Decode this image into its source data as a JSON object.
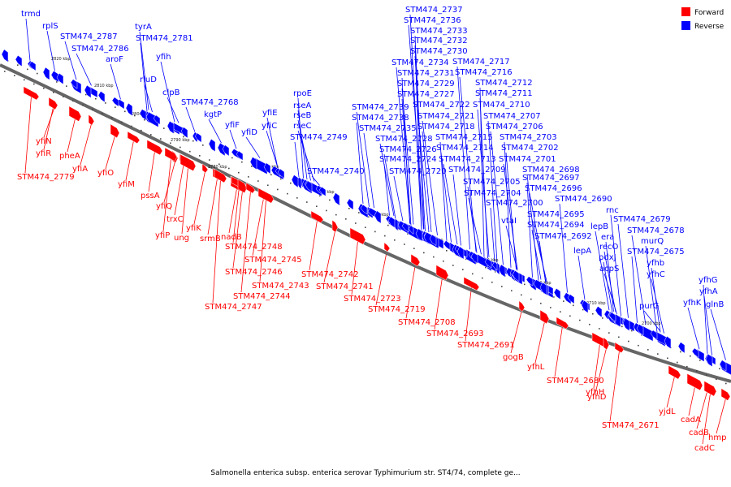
{
  "caption": "Salmonella enterica subsp. enterica serovar Typhimurium str. ST4/74, complete ge...",
  "legend": [
    {
      "label": "Forward",
      "color": "#ff0000"
    },
    {
      "label": "Reverse",
      "color": "#0000ff"
    }
  ],
  "colors": {
    "forward": "#ff0000",
    "reverse": "#0000ff",
    "backbone": "#666666"
  },
  "ticks": [
    "2820 kbp",
    "2810 kbp",
    "2800 kbp",
    "2790 kbp",
    "2780 kbp",
    "2770 kbp",
    "2760 kbp",
    "2750 kbp",
    "2740 kbp",
    "2730 kbp",
    "2720 kbp",
    "2710 kbp",
    "2700 kbp"
  ],
  "reverse_labels": [
    "trmd",
    "rplS",
    "STM474_2787",
    "STM474_2786",
    "tyrA",
    "STM474_2781",
    "aroF",
    "yfih",
    "rluD",
    "clpB",
    "STM474_2768",
    "kgtP",
    "yfiF",
    "yfiE",
    "yfiD",
    "yfiC",
    "rpoE",
    "rseA",
    "rseB",
    "rseC",
    "STM474_2749",
    "STM474_2740",
    "STM474_2737",
    "STM474_2736",
    "STM474_2733",
    "STM474_2732",
    "STM474_2730",
    "STM474_2734",
    "STM474_2731",
    "STM474_2729",
    "STM474_2727",
    "STM474_2739",
    "STM474_2738",
    "STM474_2735",
    "STM474_2728",
    "STM474_2726",
    "STM474_2724",
    "STM474_2720",
    "STM474_2717",
    "STM474_2716",
    "STM474_2712",
    "STM474_2711",
    "STM474_2722",
    "STM474_2721",
    "STM474_2718",
    "STM474_2715",
    "STM474_2714",
    "STM474_2713",
    "STM474_2709",
    "STM474_2710",
    "STM474_2707",
    "STM474_2706",
    "STM474_2703",
    "STM474_2702",
    "STM474_2701",
    "STM474_2698",
    "STM474_2697",
    "STM474_2705",
    "STM474_2704",
    "STM474_2696",
    "STM474_2700",
    "STM474_2690",
    "vtaI",
    "STM474_2695",
    "STM474_2694",
    "STM474_2692",
    "rnc",
    "lepB",
    "era",
    "recO",
    "pdxJ",
    "acpS",
    "lepA",
    "STM474_2679",
    "STM474_2678",
    "murQ",
    "STM474_2675",
    "yfhb",
    "yfhC",
    "purG",
    "yfhG",
    "yfhA",
    "yfhK",
    "glnB"
  ],
  "forward_labels": [
    "yfiN",
    "yfiR",
    "pheA",
    "STM474_2779",
    "yfiA",
    "yfiO",
    "yfiM",
    "pssA",
    "yfiQ",
    "trxC",
    "yfiP",
    "ung",
    "yfiK",
    "srmB",
    "nadB",
    "STM474_2748",
    "STM474_2745",
    "STM474_2746",
    "STM474_2742",
    "STM474_2743",
    "STM474_2741",
    "STM474_2744",
    "STM474_2747",
    "STM474_2723",
    "STM474_2719",
    "STM474_2708",
    "STM474_2693",
    "STM474_2691",
    "gogB",
    "yfhL",
    "STM474_2680",
    "yfhH",
    "yfhD",
    "STM474_2671",
    "yjdL",
    "cadA",
    "cadB",
    "hmp",
    "cadC"
  ]
}
